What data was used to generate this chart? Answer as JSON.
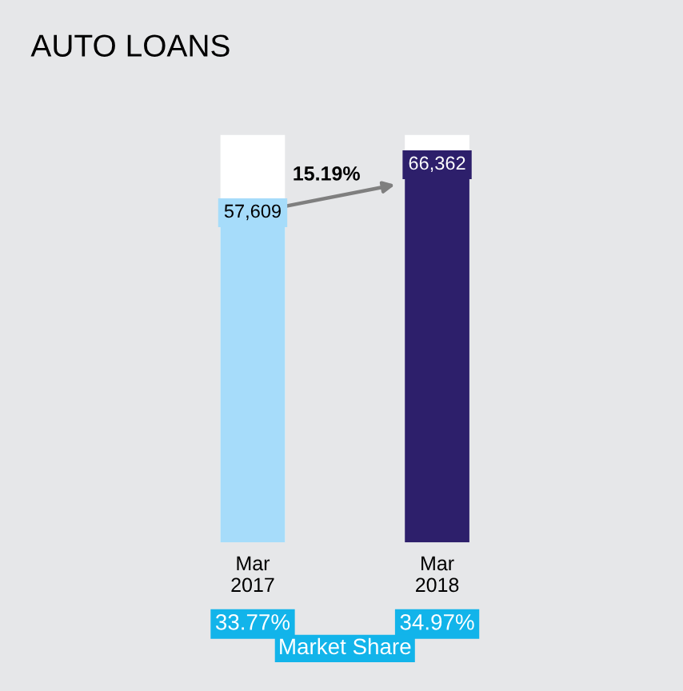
{
  "chart_data": {
    "type": "bar",
    "title": "AUTO LOANS",
    "categories": [
      "Mar\n2017",
      "Mar\n2018"
    ],
    "values": [
      57609,
      66362
    ],
    "colors": [
      "#a6dcfa",
      "#2d1f6b"
    ],
    "data_labels": true,
    "value_labels": [
      "57,609",
      "66,362"
    ],
    "grid": false,
    "annotations": [
      "15.19%",
      "33.77%",
      "34.97%",
      "Market Share"
    ]
  }
}
